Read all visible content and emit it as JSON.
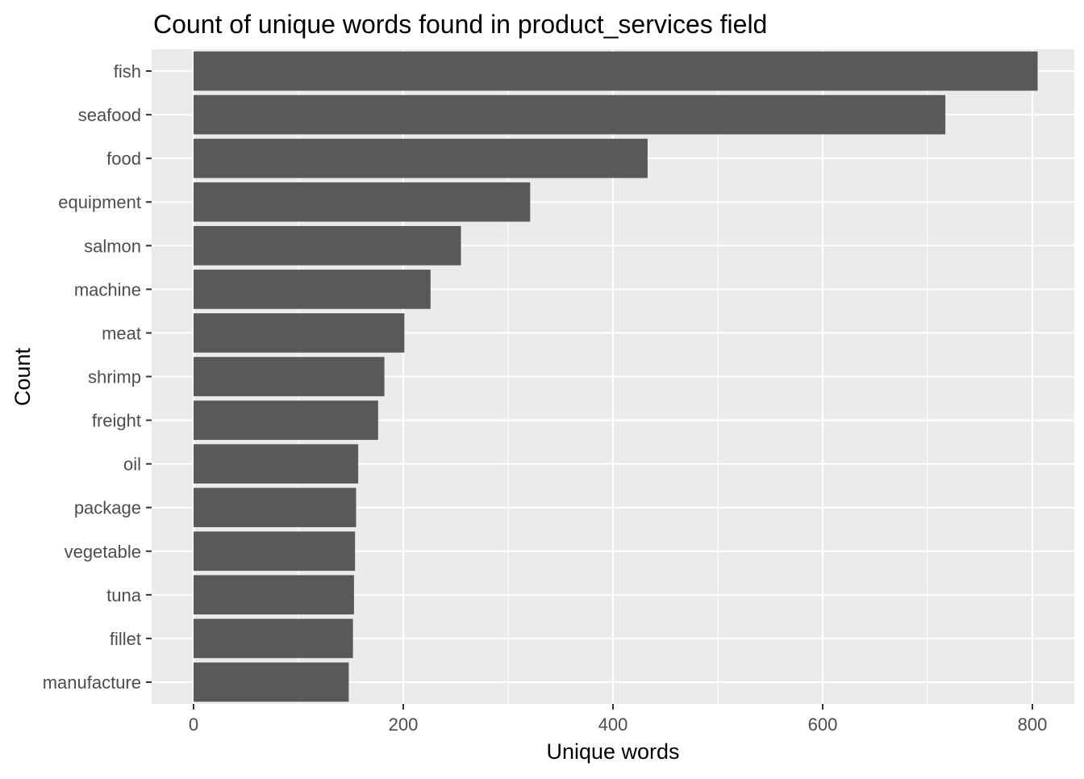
{
  "chart_data": {
    "type": "bar",
    "orientation": "horizontal",
    "title": "Count of unique words found in product_services field",
    "xlabel": "Unique words",
    "ylabel": "Count",
    "categories": [
      "fish",
      "seafood",
      "food",
      "equipment",
      "salmon",
      "machine",
      "meat",
      "shrimp",
      "freight",
      "oil",
      "package",
      "vegetable",
      "tuna",
      "fillet",
      "manufacture"
    ],
    "values": [
      805,
      717,
      433,
      321,
      255,
      226,
      201,
      182,
      176,
      157,
      155,
      154,
      153,
      152,
      148
    ],
    "xlim": [
      -40,
      840
    ],
    "x_ticks": [
      0,
      200,
      400,
      600,
      800
    ],
    "x_tick_labels": [
      "0",
      "200",
      "400",
      "600",
      "800"
    ],
    "grid": true,
    "legend": "none",
    "colors": {
      "bar": "#595959",
      "panel_background": "#ebebeb",
      "grid_line": "#ffffff",
      "tick_label": "#4d4d4d",
      "tick_mark": "#333333"
    }
  }
}
